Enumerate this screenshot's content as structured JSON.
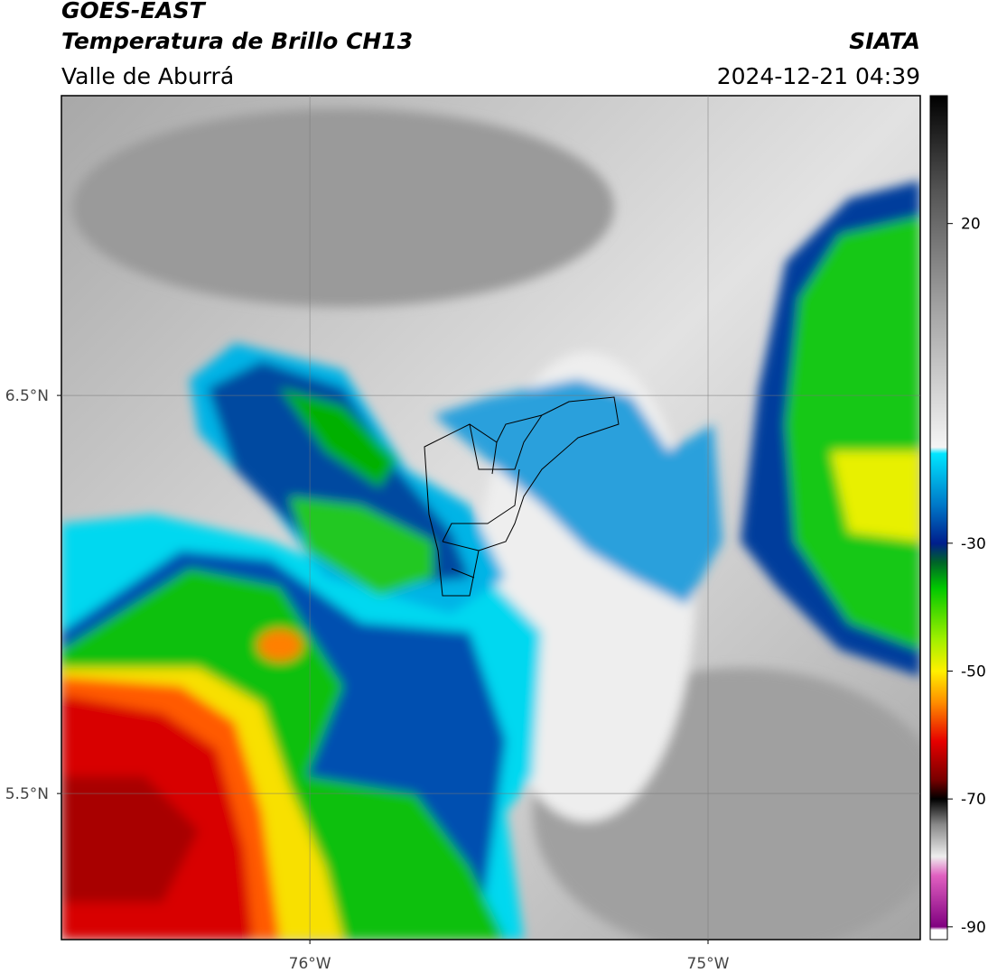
{
  "header": {
    "satellite": "GOES-EAST",
    "product": "Temperatura de Brillo CH13",
    "region": "Valle de Aburrá",
    "source": "SIATA",
    "datetime": "2024-12-21 04:39"
  },
  "map": {
    "xlim": [
      -76.624,
      -74.467
    ],
    "ylim": [
      5.133,
      7.253
    ],
    "xticks": [
      {
        "value": -76,
        "label": "76°W"
      },
      {
        "value": -75,
        "label": "75°W"
      }
    ],
    "yticks": [
      {
        "value": 6.5,
        "label": "6.5°N"
      },
      {
        "value": 5.5,
        "label": "5.5°N"
      }
    ],
    "grid": true
  },
  "colorbar": {
    "lim": [
      -92,
      40
    ],
    "ticks": [
      20,
      -30,
      -50,
      -70,
      -90
    ],
    "stops": [
      {
        "value": 40,
        "color": "#000000"
      },
      {
        "value": 25,
        "color": "#555555"
      },
      {
        "value": 5,
        "color": "#aaaaaa"
      },
      {
        "value": -15,
        "color": "#f4f4f4"
      },
      {
        "value": -16,
        "color": "#00e5ff"
      },
      {
        "value": -24,
        "color": "#0078c8"
      },
      {
        "value": -30,
        "color": "#001e8c"
      },
      {
        "value": -33,
        "color": "#006428"
      },
      {
        "value": -37,
        "color": "#00c800"
      },
      {
        "value": -45,
        "color": "#a0f000"
      },
      {
        "value": -50,
        "color": "#fff000"
      },
      {
        "value": -55,
        "color": "#ff8c00"
      },
      {
        "value": -61,
        "color": "#e60000"
      },
      {
        "value": -67,
        "color": "#780000"
      },
      {
        "value": -70,
        "color": "#000000"
      },
      {
        "value": -74,
        "color": "#888888"
      },
      {
        "value": -79,
        "color": "#eeeeee"
      },
      {
        "value": -82,
        "color": "#e060c0"
      },
      {
        "value": -90,
        "color": "#800080"
      },
      {
        "value": -90.5,
        "color": "#ffffff"
      },
      {
        "value": -92,
        "color": "#ffffff"
      }
    ]
  }
}
